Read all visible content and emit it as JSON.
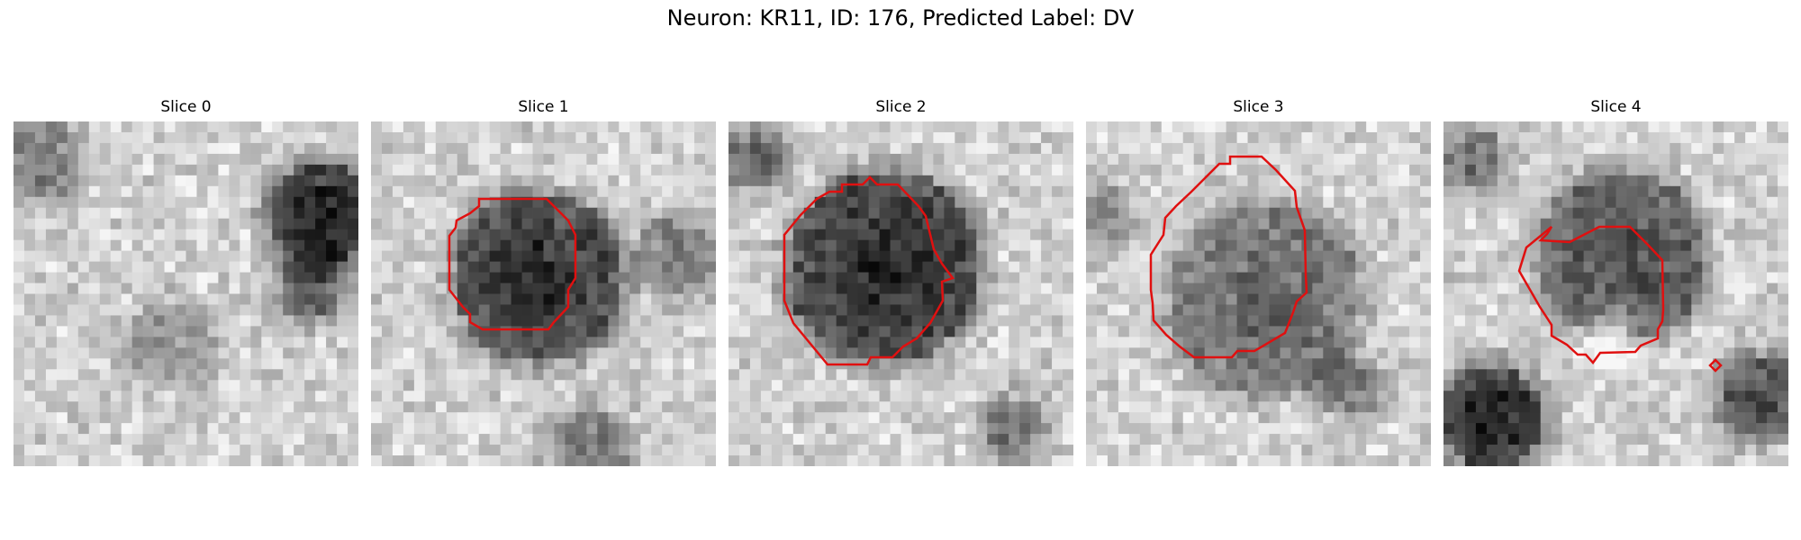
{
  "figure": {
    "title": "Neuron: KR11, ID: 176, Predicted Label: DV",
    "outline_color": "#e01010"
  },
  "panels": [
    {
      "label": "Slice 0",
      "has_outline": false
    },
    {
      "label": "Slice 1",
      "has_outline": true
    },
    {
      "label": "Slice 2",
      "has_outline": true
    },
    {
      "label": "Slice 3",
      "has_outline": true
    },
    {
      "label": "Slice 4",
      "has_outline": true
    }
  ]
}
